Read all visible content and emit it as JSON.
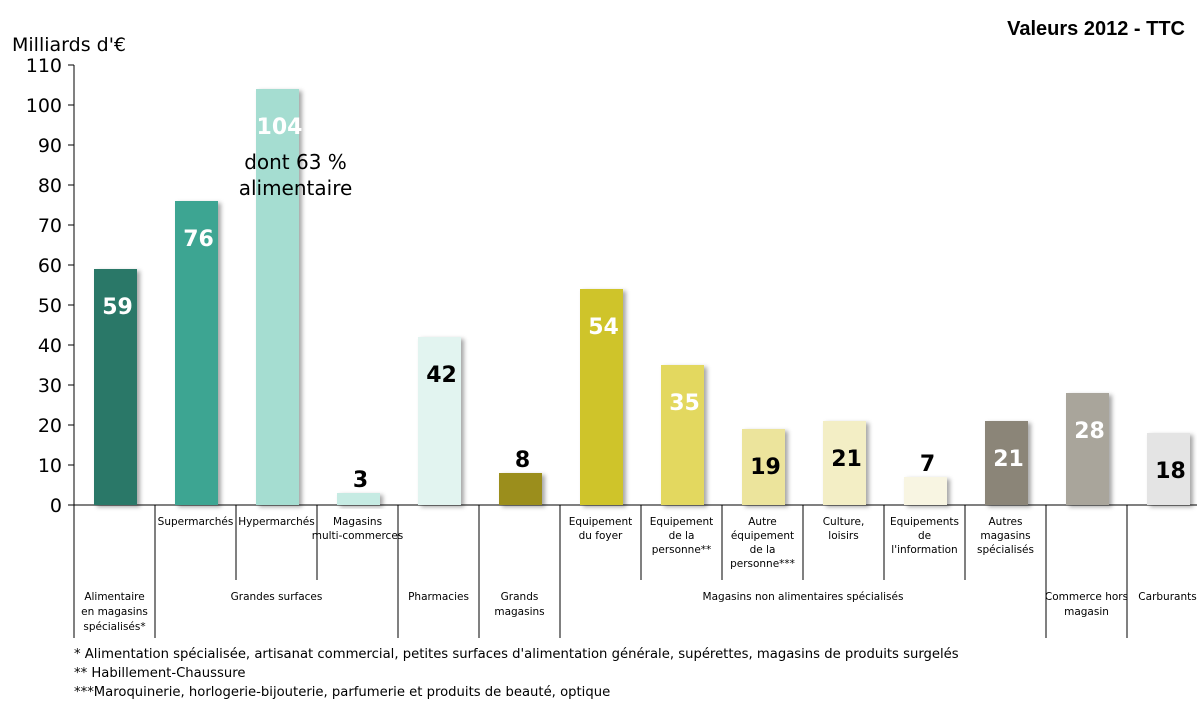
{
  "header": {
    "title": "Valeurs 2012 - TTC",
    "unit_label": "Milliards d'€"
  },
  "chart_data": {
    "type": "bar",
    "title": "Valeurs 2012 - TTC",
    "xlabel": "",
    "ylabel": "Milliards d'€",
    "ylim": [
      0,
      110
    ],
    "yticks": [
      0,
      10,
      20,
      30,
      40,
      50,
      60,
      70,
      80,
      90,
      100,
      110
    ],
    "grid": false,
    "legend": "none",
    "bars": [
      {
        "name": "",
        "group": "Alimentaire en magasins spécialisés*",
        "value": 59,
        "color": "#2a7868",
        "label_color": "#ffffff"
      },
      {
        "name": "Supermarchés",
        "group": "Grandes surfaces",
        "value": 76,
        "color": "#3da592",
        "label_color": "#ffffff"
      },
      {
        "name": "Hypermarchés",
        "group": "Grandes surfaces",
        "value": 104,
        "color": "#a5ddd1",
        "label_color": "#ffffff"
      },
      {
        "name": "Magasins multi-commerces",
        "group": "Grandes surfaces",
        "value": 3,
        "color": "#c6ebe3",
        "label_color": "#000000"
      },
      {
        "name": "",
        "group": "Pharmacies",
        "value": 42,
        "color": "#e2f4f0",
        "label_color": "#000000"
      },
      {
        "name": "",
        "group": "Grands magasins",
        "value": 8,
        "color": "#9b8e1d",
        "label_color": "#000000"
      },
      {
        "name": "Equipement du foyer",
        "group": "Magasins non alimentaires spécialisés",
        "value": 54,
        "color": "#cfc42c",
        "label_color": "#ffffff"
      },
      {
        "name": "Equipement de la personne**",
        "group": "Magasins non alimentaires spécialisés",
        "value": 35,
        "color": "#e3d85e",
        "label_color": "#ffffff"
      },
      {
        "name": "Autre équipement de la personne***",
        "group": "Magasins non alimentaires spécialisés",
        "value": 19,
        "color": "#ece49c",
        "label_color": "#000000"
      },
      {
        "name": "Culture, loisirs",
        "group": "Magasins non alimentaires spécialisés",
        "value": 21,
        "color": "#f3eec5",
        "label_color": "#000000"
      },
      {
        "name": "Equipements de l'information",
        "group": "Magasins non alimentaires spécialisés",
        "value": 7,
        "color": "#f8f5e2",
        "label_color": "#000000"
      },
      {
        "name": "Autres magasins spécialisés",
        "group": "Magasins non alimentaires spécialisés",
        "value": 21,
        "color": "#8b8578",
        "label_color": "#ffffff"
      },
      {
        "name": "",
        "group": "Commerce hors magasin",
        "value": 28,
        "color": "#a9a59b",
        "label_color": "#ffffff"
      },
      {
        "name": "",
        "group": "Carburants",
        "value": 18,
        "color": "#e4e4e4",
        "label_color": "#000000"
      }
    ],
    "groups": [
      {
        "label": "Alimentaire en magasins spécialisés*",
        "start": 0,
        "end": 0
      },
      {
        "label": "Grandes surfaces",
        "start": 1,
        "end": 3
      },
      {
        "label": "Pharmacies",
        "start": 4,
        "end": 4
      },
      {
        "label": "Grands magasins",
        "start": 5,
        "end": 5
      },
      {
        "label": "Magasins non alimentaires spécialisés",
        "start": 6,
        "end": 11
      },
      {
        "label": "Commerce hors magasin",
        "start": 12,
        "end": 12
      },
      {
        "label": "Carburants",
        "start": 13,
        "end": 13
      }
    ],
    "annotations": [
      {
        "text": "dont 63 % alimentaire",
        "bar": 2
      }
    ]
  },
  "footnotes": [
    "* Alimentation spécialisée, artisanat commercial, petites surfaces d'alimentation générale, supérettes, magasins de produits surgelés",
    "** Habillement-Chaussure",
    "***Maroquinerie, horlogerie-bijouterie, parfumerie et produits de beauté, optique"
  ]
}
